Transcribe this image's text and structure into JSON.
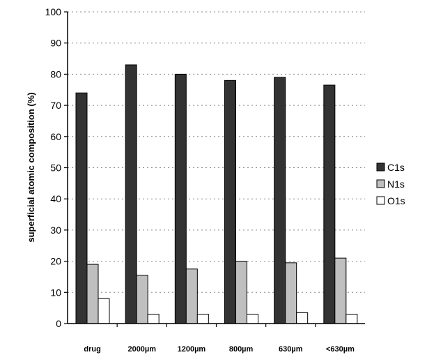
{
  "chart_data": {
    "type": "bar",
    "title": "",
    "xlabel": "",
    "ylabel": "superficial atomic composition (%)",
    "ylim": [
      0,
      100
    ],
    "yticks": [
      0,
      10,
      20,
      30,
      40,
      50,
      60,
      70,
      80,
      90,
      100
    ],
    "grid": "horizontal dotted",
    "legend_position": "right",
    "categories": [
      "drug",
      "2000µm",
      "1200µm",
      "800µm",
      "630µm",
      "<630µm"
    ],
    "series": [
      {
        "name": "C1s",
        "color": "#333333",
        "values": [
          74,
          83,
          80,
          78,
          79,
          76.5
        ]
      },
      {
        "name": "N1s",
        "color": "#bfbfbf",
        "values": [
          19,
          15.5,
          17.5,
          20,
          19.5,
          21
        ]
      },
      {
        "name": "O1s",
        "color": "#ffffff",
        "values": [
          8,
          3,
          3,
          3,
          3.5,
          3
        ]
      }
    ]
  }
}
